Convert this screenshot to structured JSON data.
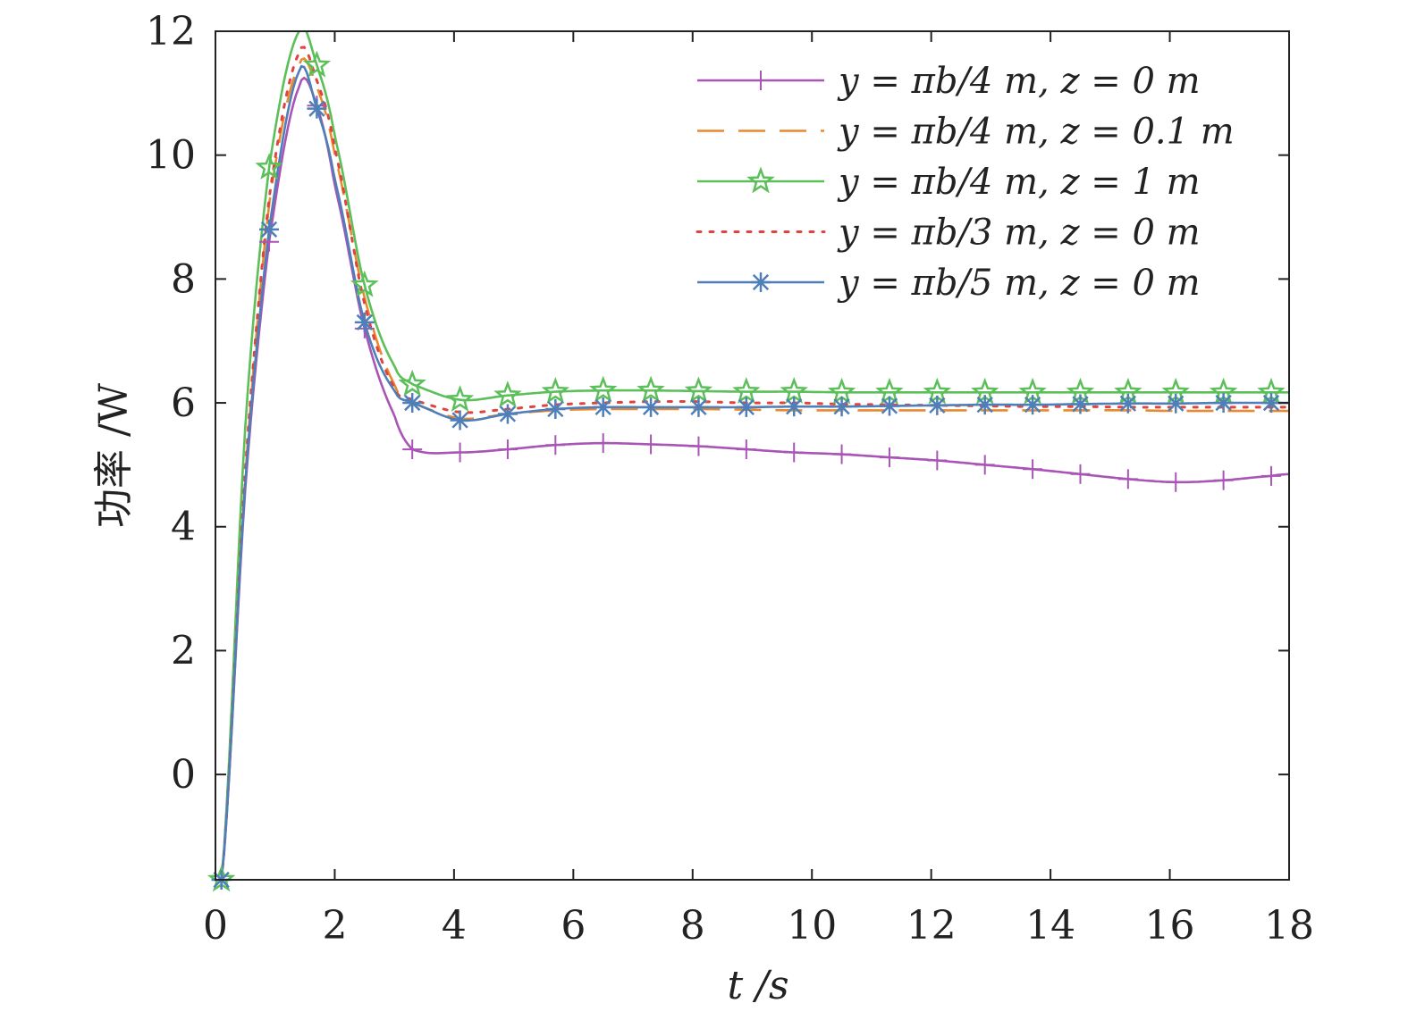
{
  "chart_data": {
    "type": "line",
    "title": "",
    "xlabel": "t /s",
    "ylabel": "功率 /W",
    "xlim": [
      0,
      18
    ],
    "ylim": [
      -1.7,
      12
    ],
    "xticks": [
      0,
      2,
      4,
      6,
      8,
      10,
      12,
      14,
      16,
      18
    ],
    "yticks": [
      0,
      2,
      4,
      6,
      8,
      10,
      12
    ],
    "xtick_labels": [
      "0",
      "2",
      "4",
      "6",
      "8",
      "10",
      "12",
      "14",
      "16",
      "18"
    ],
    "ytick_labels": [
      "0",
      "2",
      "4",
      "6",
      "8",
      "10",
      "12"
    ],
    "grid": false,
    "legend_position": "top-right",
    "series": [
      {
        "name": "y = πb/4 m, z = 0 m",
        "color": "#a855b5",
        "line_style": "solid",
        "marker": "plus",
        "x": [
          0.1,
          0.5,
          0.9,
          1.4,
          1.7,
          2.0,
          2.5,
          3.0,
          3.3,
          4.1,
          4.9,
          5.7,
          6.5,
          7.3,
          8.1,
          8.9,
          9.7,
          10.5,
          11.3,
          12.1,
          12.9,
          13.7,
          14.5,
          15.3,
          16.1,
          16.9,
          17.7,
          18.0
        ],
        "y": [
          -1.7,
          4.6,
          8.6,
          11.1,
          10.8,
          9.5,
          7.2,
          5.8,
          5.25,
          5.2,
          5.25,
          5.32,
          5.35,
          5.33,
          5.3,
          5.25,
          5.2,
          5.17,
          5.12,
          5.07,
          5.0,
          4.93,
          4.85,
          4.77,
          4.72,
          4.75,
          4.82,
          4.85
        ],
        "marker_x": [
          0.1,
          0.9,
          1.7,
          2.5,
          3.3,
          4.1,
          4.9,
          5.7,
          6.5,
          7.3,
          8.1,
          8.9,
          9.7,
          10.5,
          11.3,
          12.1,
          12.9,
          13.7,
          14.5,
          15.3,
          16.1,
          16.9,
          17.7
        ]
      },
      {
        "name": "y = πb/4 m, z = 0.1 m",
        "color": "#e8892f",
        "line_style": "dashed",
        "marker": "none",
        "x": [
          0.1,
          0.5,
          0.9,
          1.4,
          1.7,
          2.0,
          2.5,
          3.0,
          3.3,
          4.1,
          4.9,
          5.7,
          6.5,
          7.3,
          8.1,
          8.9,
          9.7,
          10.5,
          11.3,
          12.1,
          12.9,
          13.7,
          14.5,
          15.3,
          16.1,
          16.9,
          17.7,
          18.0
        ],
        "y": [
          -1.7,
          4.8,
          9.2,
          11.45,
          11.1,
          10.0,
          7.7,
          6.3,
          6.0,
          5.75,
          5.82,
          5.88,
          5.9,
          5.9,
          5.9,
          5.89,
          5.88,
          5.88,
          5.88,
          5.88,
          5.88,
          5.88,
          5.88,
          5.88,
          5.87,
          5.87,
          5.87,
          5.87
        ]
      },
      {
        "name": "y = πb/4 m, z = 1 m",
        "color": "#5cbf5a",
        "line_style": "solid",
        "marker": "star",
        "x": [
          0.1,
          0.5,
          0.9,
          1.4,
          1.7,
          2.0,
          2.5,
          3.0,
          3.3,
          4.1,
          4.9,
          5.7,
          6.5,
          7.3,
          8.1,
          8.9,
          9.7,
          10.5,
          11.3,
          12.1,
          12.9,
          13.7,
          14.5,
          15.3,
          16.1,
          16.9,
          17.7,
          18.0
        ],
        "y": [
          -1.7,
          5.6,
          9.8,
          12.0,
          11.45,
          10.3,
          7.9,
          6.6,
          6.3,
          6.05,
          6.12,
          6.18,
          6.2,
          6.2,
          6.19,
          6.18,
          6.18,
          6.17,
          6.17,
          6.17,
          6.17,
          6.17,
          6.17,
          6.17,
          6.17,
          6.17,
          6.17,
          6.17
        ],
        "marker_x": [
          0.1,
          0.9,
          1.7,
          2.5,
          3.3,
          4.1,
          4.9,
          5.7,
          6.5,
          7.3,
          8.1,
          8.9,
          9.7,
          10.5,
          11.3,
          12.1,
          12.9,
          13.7,
          14.5,
          15.3,
          16.1,
          16.9,
          17.7
        ]
      },
      {
        "name": "y = πb/3 m, z = 0 m",
        "color": "#e0443f",
        "line_style": "dotted",
        "marker": "none",
        "x": [
          0.1,
          0.5,
          0.9,
          1.4,
          1.7,
          2.0,
          2.5,
          3.0,
          3.3,
          4.1,
          4.9,
          5.7,
          6.5,
          7.3,
          8.1,
          8.9,
          9.7,
          10.5,
          11.3,
          12.1,
          12.9,
          13.7,
          14.5,
          15.3,
          16.1,
          16.9,
          17.7,
          18.0
        ],
        "y": [
          -1.7,
          4.9,
          9.3,
          11.65,
          11.2,
          10.1,
          7.6,
          6.25,
          6.05,
          5.85,
          5.9,
          5.97,
          6.0,
          6.02,
          6.02,
          6.0,
          6.0,
          5.98,
          5.97,
          5.96,
          5.95,
          5.94,
          5.94,
          5.93,
          5.93,
          5.93,
          5.93,
          5.93
        ]
      },
      {
        "name": "y = πb/5 m, z = 0 m",
        "color": "#4f7fb8",
        "line_style": "solid",
        "marker": "asterisk",
        "x": [
          0.1,
          0.5,
          0.9,
          1.4,
          1.7,
          2.0,
          2.5,
          3.0,
          3.3,
          4.1,
          4.9,
          5.7,
          6.5,
          7.3,
          8.1,
          8.9,
          9.7,
          10.5,
          11.3,
          12.1,
          12.9,
          13.7,
          14.5,
          15.3,
          16.1,
          16.9,
          17.7,
          18.0
        ],
        "y": [
          -1.7,
          4.7,
          8.8,
          11.35,
          10.75,
          9.6,
          7.3,
          6.2,
          6.0,
          5.72,
          5.82,
          5.9,
          5.93,
          5.93,
          5.93,
          5.93,
          5.94,
          5.94,
          5.95,
          5.96,
          5.97,
          5.97,
          5.98,
          5.99,
          5.99,
          6.0,
          6.0,
          6.0
        ],
        "marker_x": [
          0.1,
          0.9,
          1.7,
          2.5,
          3.3,
          4.1,
          4.9,
          5.7,
          6.5,
          7.3,
          8.1,
          8.9,
          9.7,
          10.5,
          11.3,
          12.1,
          12.9,
          13.7,
          14.5,
          15.3,
          16.1,
          16.9,
          17.7
        ]
      }
    ]
  }
}
